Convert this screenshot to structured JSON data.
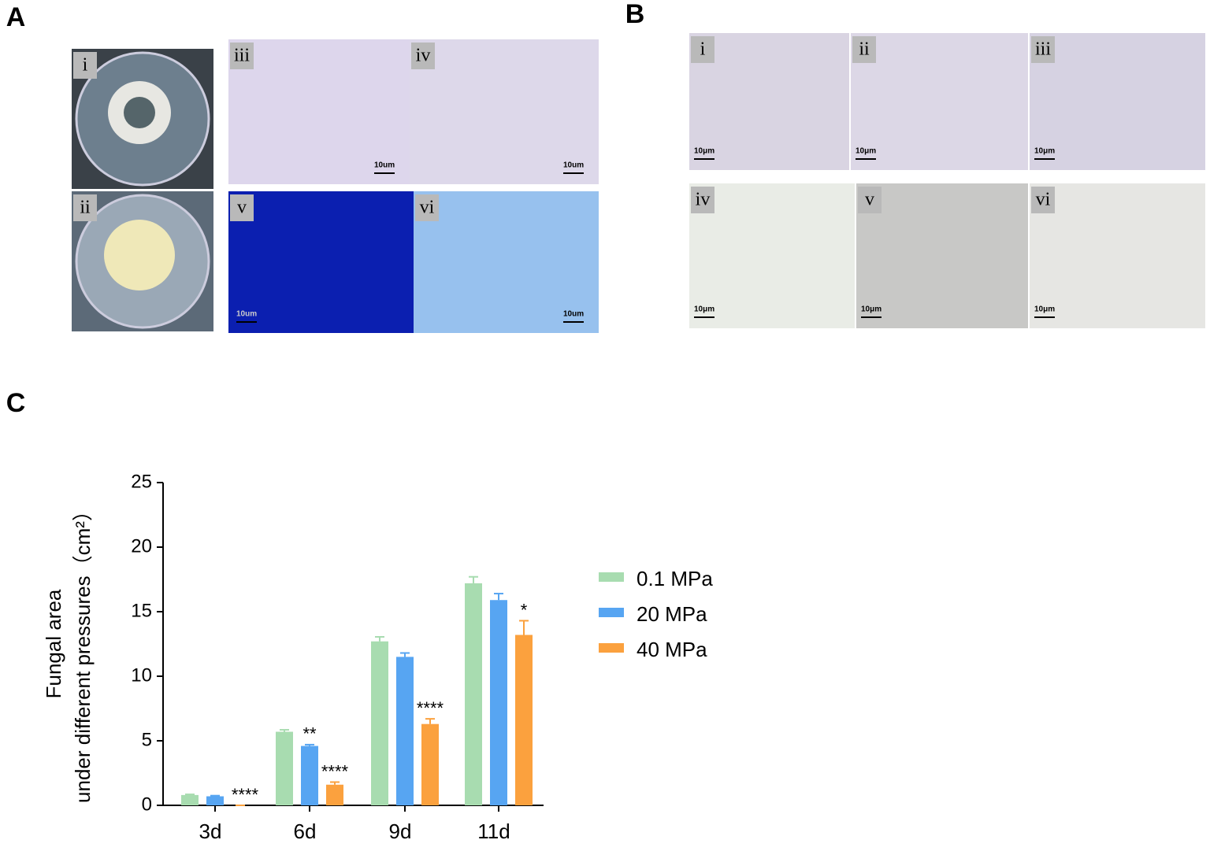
{
  "panels": [
    {
      "label": "A",
      "images": [
        {
          "label": "i"
        },
        {
          "label": "ii"
        },
        {
          "label": "iii",
          "scale": "10um"
        },
        {
          "label": "iv",
          "scale": "10um"
        },
        {
          "label": "v",
          "scale": "10um"
        },
        {
          "label": "vi",
          "scale": "10um"
        }
      ]
    },
    {
      "label": "B",
      "images": [
        {
          "label": "i",
          "scale": "10μm"
        },
        {
          "label": "ii",
          "scale": "10μm"
        },
        {
          "label": "iii",
          "scale": "10μm"
        },
        {
          "label": "iv",
          "scale": "10μm"
        },
        {
          "label": "v",
          "scale": "10μm"
        },
        {
          "label": "vi",
          "scale": "10μm"
        }
      ]
    },
    {
      "label": "C"
    }
  ],
  "chart_data": {
    "type": "bar",
    "ylabel": [
      "Fungal area",
      "under different pressures（cm²）"
    ],
    "categories": [
      "3d",
      "6d",
      "9d",
      "11d"
    ],
    "series": [
      {
        "name": "0.1 MPa",
        "color": "#a8dcb0",
        "values": [
          0.8,
          5.7,
          12.7,
          17.2
        ],
        "errors": [
          0.05,
          0.15,
          0.35,
          0.5
        ],
        "significance": [
          null,
          null,
          null,
          null
        ]
      },
      {
        "name": "20 MPa",
        "color": "#57a5f2",
        "values": [
          0.7,
          4.6,
          11.5,
          15.9
        ],
        "errors": [
          0.05,
          0.1,
          0.3,
          0.5
        ],
        "significance": [
          null,
          "**",
          null,
          null
        ]
      },
      {
        "name": "40 MPa",
        "color": "#fba13e",
        "values": [
          0,
          1.6,
          6.3,
          13.2
        ],
        "errors": [
          0,
          0.2,
          0.4,
          1.1
        ],
        "significance": [
          "****",
          "****",
          "****",
          "*"
        ]
      }
    ],
    "ylim": [
      0,
      25
    ],
    "yticks": [
      0,
      5,
      10,
      15,
      20,
      25
    ],
    "legend": "right"
  }
}
